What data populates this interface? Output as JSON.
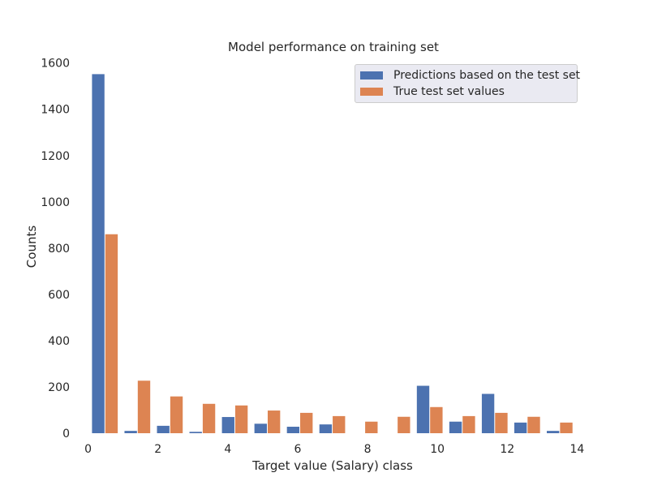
{
  "chart_data": {
    "type": "bar",
    "title": "Model performance on training set",
    "xlabel": "Target value (Salary) class",
    "ylabel": "Counts",
    "xlim": [
      -0.2,
      14.2
    ],
    "ylim": [
      0,
      1620
    ],
    "x_ticks": [
      0,
      2,
      4,
      6,
      8,
      10,
      12,
      14
    ],
    "y_ticks": [
      0,
      200,
      400,
      600,
      800,
      1000,
      1200,
      1400,
      1600
    ],
    "grid": false,
    "legend_position": "top-right",
    "series": [
      {
        "name": "Predictions based on the test set",
        "color": "#4c72b0",
        "bins": [
          {
            "x_start": 0.1,
            "x_end": 0.48,
            "value": 1552
          },
          {
            "x_start": 1.03,
            "x_end": 1.41,
            "value": 10
          },
          {
            "x_start": 1.96,
            "x_end": 2.34,
            "value": 32
          },
          {
            "x_start": 2.89,
            "x_end": 3.27,
            "value": 6
          },
          {
            "x_start": 3.82,
            "x_end": 4.2,
            "value": 70
          },
          {
            "x_start": 4.75,
            "x_end": 5.13,
            "value": 41
          },
          {
            "x_start": 5.68,
            "x_end": 6.06,
            "value": 28
          },
          {
            "x_start": 6.61,
            "x_end": 6.99,
            "value": 38
          },
          {
            "x_start": 7.54,
            "x_end": 7.92,
            "value": 0
          },
          {
            "x_start": 8.47,
            "x_end": 8.85,
            "value": 0
          },
          {
            "x_start": 9.4,
            "x_end": 9.78,
            "value": 205
          },
          {
            "x_start": 10.33,
            "x_end": 10.71,
            "value": 50
          },
          {
            "x_start": 11.26,
            "x_end": 11.64,
            "value": 170
          },
          {
            "x_start": 12.19,
            "x_end": 12.57,
            "value": 46
          },
          {
            "x_start": 13.12,
            "x_end": 13.5,
            "value": 10
          }
        ]
      },
      {
        "name": "True test set values",
        "color": "#dd8452",
        "bins": [
          {
            "x_start": 0.48,
            "x_end": 0.86,
            "value": 860
          },
          {
            "x_start": 1.41,
            "x_end": 1.79,
            "value": 227
          },
          {
            "x_start": 2.34,
            "x_end": 2.72,
            "value": 159
          },
          {
            "x_start": 3.27,
            "x_end": 3.65,
            "value": 127
          },
          {
            "x_start": 4.2,
            "x_end": 4.58,
            "value": 120
          },
          {
            "x_start": 5.13,
            "x_end": 5.51,
            "value": 98
          },
          {
            "x_start": 6.06,
            "x_end": 6.44,
            "value": 88
          },
          {
            "x_start": 6.99,
            "x_end": 7.37,
            "value": 74
          },
          {
            "x_start": 7.92,
            "x_end": 8.3,
            "value": 50
          },
          {
            "x_start": 8.85,
            "x_end": 9.23,
            "value": 71
          },
          {
            "x_start": 9.78,
            "x_end": 10.16,
            "value": 113
          },
          {
            "x_start": 10.71,
            "x_end": 11.09,
            "value": 74
          },
          {
            "x_start": 11.64,
            "x_end": 12.02,
            "value": 88
          },
          {
            "x_start": 12.57,
            "x_end": 12.95,
            "value": 71
          },
          {
            "x_start": 13.5,
            "x_end": 13.88,
            "value": 46
          }
        ]
      }
    ]
  }
}
